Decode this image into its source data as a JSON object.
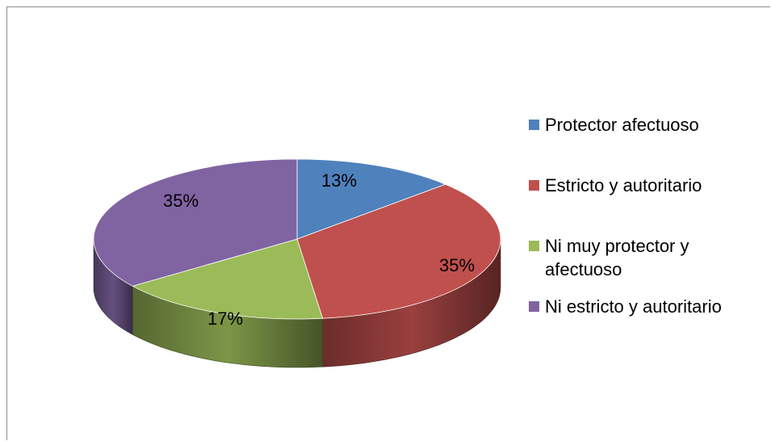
{
  "chart_data": {
    "type": "pie",
    "style": "3d",
    "title": "",
    "legend_position": "right",
    "slices": [
      {
        "name": "Protector afectuoso",
        "value": 13,
        "label": "13%",
        "color": "#4F81BD"
      },
      {
        "name": "Estricto y autoritario",
        "value": 35,
        "label": "35%",
        "color": "#C0504D"
      },
      {
        "name": "Ni muy protector y afectuoso",
        "value": 17,
        "label": "17%",
        "color": "#9BBB59"
      },
      {
        "name": "Ni estricto y autoritario",
        "value": 35,
        "label": "35%",
        "color": "#8064A2"
      }
    ]
  }
}
